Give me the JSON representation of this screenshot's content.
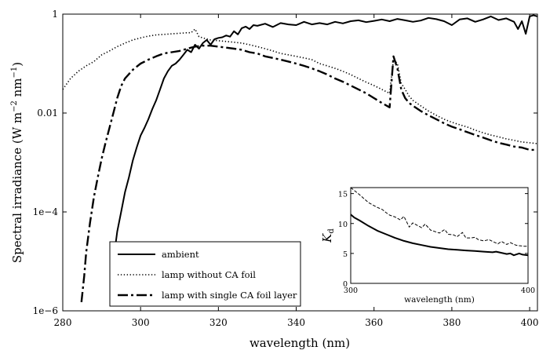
{
  "chart_data": [
    {
      "type": "line",
      "xlabel": "wavelength (nm)",
      "ylabel": "Spectral irradiance (W m−2 nm−1)",
      "ylabel_parts": {
        "base": "Spectral irradiance (W m",
        "exp1": "−2",
        "mid": " nm",
        "exp2": "−1",
        "end": ")"
      },
      "x_range": [
        280,
        402
      ],
      "y_scale": "log",
      "y_range": [
        1e-06,
        1
      ],
      "x_ticks": [
        280,
        300,
        320,
        340,
        360,
        380,
        400
      ],
      "x_tick_labels": [
        "280",
        "300",
        "320",
        "340",
        "360",
        "380",
        "400"
      ],
      "y_ticks": [
        1e-06,
        0.0001,
        0.01,
        1
      ],
      "y_tick_labels": [
        "1e−6",
        "1e−4",
        "0.01",
        "1"
      ],
      "legend_position": "bottom-left",
      "series": [
        {
          "name": "ambient",
          "style": "solid",
          "x": [
            293.5,
            294,
            295,
            296,
            297,
            298,
            299,
            300,
            301,
            302,
            303,
            304,
            305,
            306,
            307,
            308,
            309,
            310,
            311,
            312,
            313,
            314,
            315,
            316,
            317,
            318,
            319,
            320,
            321,
            322,
            323,
            324,
            325,
            326,
            327,
            328,
            329,
            330,
            332,
            334,
            336,
            338,
            340,
            342,
            344,
            346,
            348,
            350,
            352,
            354,
            356,
            358,
            360,
            362,
            364,
            366,
            368,
            370,
            372,
            374,
            376,
            378,
            380,
            382,
            384,
            386,
            388,
            390,
            392,
            394,
            396,
            397,
            398,
            399,
            400,
            401,
            402
          ],
          "y": [
            2e-05,
            4e-05,
            0.0001,
            0.00025,
            0.0005,
            0.0011,
            0.002,
            0.0035,
            0.005,
            0.0075,
            0.012,
            0.018,
            0.03,
            0.05,
            0.07,
            0.09,
            0.1,
            0.12,
            0.15,
            0.19,
            0.17,
            0.24,
            0.2,
            0.26,
            0.3,
            0.24,
            0.31,
            0.33,
            0.34,
            0.37,
            0.35,
            0.45,
            0.39,
            0.52,
            0.56,
            0.5,
            0.6,
            0.58,
            0.64,
            0.55,
            0.66,
            0.62,
            0.6,
            0.7,
            0.62,
            0.66,
            0.62,
            0.7,
            0.65,
            0.72,
            0.75,
            0.69,
            0.73,
            0.78,
            0.72,
            0.8,
            0.75,
            0.7,
            0.74,
            0.84,
            0.79,
            0.72,
            0.6,
            0.78,
            0.82,
            0.7,
            0.78,
            0.9,
            0.76,
            0.82,
            0.7,
            0.5,
            0.72,
            0.4,
            0.9,
            0.95,
            0.9
          ]
        },
        {
          "name": "lamp without CA foil",
          "style": "dotted",
          "x": [
            280,
            282,
            284,
            286,
            288,
            290,
            292,
            294,
            296,
            298,
            300,
            302,
            304,
            306,
            308,
            310,
            312,
            313,
            314,
            315,
            316,
            318,
            320,
            322,
            324,
            326,
            328,
            330,
            332,
            334,
            336,
            338,
            340,
            342,
            344,
            346,
            348,
            350,
            352,
            354,
            356,
            358,
            360,
            362,
            364,
            365,
            366,
            367,
            368,
            369,
            370,
            372,
            374,
            376,
            378,
            380,
            382,
            384,
            386,
            388,
            390,
            392,
            394,
            396,
            398,
            400,
            402
          ],
          "y": [
            0.03,
            0.05,
            0.07,
            0.09,
            0.11,
            0.15,
            0.18,
            0.22,
            0.26,
            0.3,
            0.33,
            0.36,
            0.38,
            0.39,
            0.4,
            0.41,
            0.42,
            0.42,
            0.5,
            0.35,
            0.33,
            0.3,
            0.29,
            0.28,
            0.27,
            0.26,
            0.24,
            0.22,
            0.2,
            0.18,
            0.16,
            0.15,
            0.14,
            0.13,
            0.12,
            0.1,
            0.09,
            0.08,
            0.07,
            0.06,
            0.05,
            0.042,
            0.036,
            0.03,
            0.025,
            0.12,
            0.1,
            0.04,
            0.03,
            0.022,
            0.018,
            0.014,
            0.011,
            0.009,
            0.0075,
            0.0065,
            0.0058,
            0.0052,
            0.0045,
            0.004,
            0.0036,
            0.0033,
            0.003,
            0.0028,
            0.0026,
            0.0025,
            0.0024
          ]
        },
        {
          "name": "lamp with single CA foil layer",
          "style": "dashdot",
          "x": [
            284.8,
            285.5,
            286,
            287,
            288,
            289,
            290,
            291,
            292,
            293,
            294,
            295,
            296,
            298,
            300,
            302,
            304,
            306,
            308,
            310,
            312,
            314,
            316,
            318,
            320,
            322,
            324,
            326,
            328,
            330,
            332,
            334,
            336,
            338,
            340,
            342,
            344,
            346,
            348,
            350,
            352,
            354,
            356,
            358,
            360,
            362,
            364,
            365,
            366,
            367,
            368,
            369,
            370,
            372,
            374,
            376,
            378,
            380,
            382,
            384,
            386,
            388,
            390,
            392,
            394,
            396,
            398,
            400,
            402
          ],
          "y": [
            1.5e-06,
            5e-06,
            1.5e-05,
            6e-05,
            0.0002,
            0.0005,
            0.0012,
            0.0025,
            0.005,
            0.01,
            0.02,
            0.035,
            0.05,
            0.075,
            0.1,
            0.12,
            0.14,
            0.16,
            0.17,
            0.18,
            0.2,
            0.22,
            0.23,
            0.23,
            0.22,
            0.21,
            0.2,
            0.19,
            0.17,
            0.16,
            0.14,
            0.13,
            0.12,
            0.11,
            0.1,
            0.09,
            0.08,
            0.07,
            0.06,
            0.05,
            0.043,
            0.036,
            0.03,
            0.025,
            0.02,
            0.016,
            0.013,
            0.14,
            0.08,
            0.03,
            0.02,
            0.016,
            0.014,
            0.011,
            0.009,
            0.0075,
            0.0062,
            0.0053,
            0.0047,
            0.0041,
            0.0036,
            0.0032,
            0.0028,
            0.0025,
            0.0023,
            0.0021,
            0.002,
            0.0018,
            0.0018
          ]
        }
      ]
    },
    {
      "type": "line",
      "inset": true,
      "xlabel": "wavelength (nm)",
      "ylabel_parts": {
        "base": "K",
        "sub": "d"
      },
      "x_range": [
        300,
        400
      ],
      "y_range": [
        0,
        16
      ],
      "x_ticks": [
        300,
        400
      ],
      "x_tick_labels": [
        "300",
        "400"
      ],
      "y_ticks": [
        0,
        5,
        10,
        15
      ],
      "y_tick_labels": [
        "0",
        "5",
        "10",
        "15"
      ],
      "series": [
        {
          "style": "solid",
          "x": [
            300,
            302,
            305,
            310,
            315,
            320,
            325,
            330,
            335,
            340,
            345,
            350,
            355,
            360,
            365,
            370,
            375,
            380,
            382,
            385,
            388,
            390,
            392,
            395,
            397,
            400
          ],
          "y": [
            11.5,
            11,
            10.5,
            9.6,
            8.8,
            8.2,
            7.6,
            7.1,
            6.7,
            6.4,
            6.1,
            5.9,
            5.7,
            5.6,
            5.5,
            5.4,
            5.3,
            5.2,
            5.3,
            5.1,
            4.9,
            5.0,
            4.7,
            5.0,
            4.8,
            4.7
          ]
        },
        {
          "style": "dashed",
          "x": [
            300,
            305,
            310,
            315,
            318,
            320,
            322,
            325,
            328,
            330,
            333,
            335,
            340,
            342,
            345,
            350,
            353,
            355,
            358,
            360,
            363,
            365,
            368,
            370,
            372,
            375,
            378,
            380,
            383,
            385,
            388,
            390,
            393,
            395,
            398,
            400
          ],
          "y": [
            16,
            14.8,
            13.5,
            12.7,
            12.3,
            11.8,
            11.4,
            11.1,
            10.6,
            11.2,
            9.4,
            10.1,
            9.3,
            9.9,
            8.9,
            8.4,
            9.0,
            8.2,
            8.1,
            7.8,
            8.5,
            7.6,
            7.6,
            7.7,
            7.3,
            7.1,
            7.3,
            7.0,
            6.6,
            7.0,
            6.5,
            6.8,
            6.4,
            6.3,
            6.2,
            6.2
          ]
        }
      ]
    }
  ]
}
